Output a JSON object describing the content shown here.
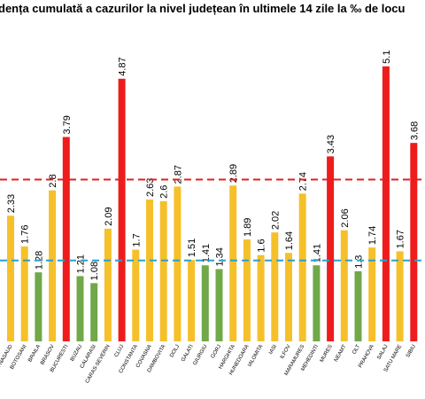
{
  "chart_data": {
    "type": "bar",
    "title": "dența cumulată a cazurilor la nivel județean în ultimele 14 zile la ‰ de locu",
    "categories": [
      "BISTRITA-NASAUD",
      "BOTOSANI",
      "BRAILA",
      "BRASOV",
      "BUCURESTI",
      "BUZAU",
      "CALARASI",
      "CARAS-SEVERIN",
      "CLUJ",
      "CONSTANTA",
      "COVASNA",
      "DAMBOVITA",
      "DOLJ",
      "GALATI",
      "GIURGIU",
      "GORJ",
      "HARGHITA",
      "HUNEDOARA",
      "IALOMITA",
      "IASI",
      "ILFOV",
      "MARAMURES",
      "MEHEDINTI",
      "MURES",
      "NEAMT",
      "OLT",
      "PRAHOVA",
      "SALAJ",
      "SATU MARE",
      "SIBIU"
    ],
    "values": [
      2.33,
      1.76,
      1.28,
      2.8,
      3.79,
      1.21,
      1.08,
      2.09,
      4.87,
      1.7,
      2.63,
      2.6,
      2.87,
      1.51,
      1.41,
      1.34,
      2.89,
      1.89,
      1.6,
      2.02,
      1.64,
      2.74,
      1.41,
      3.43,
      2.06,
      1.3,
      1.74,
      5.1,
      1.67,
      3.68
    ],
    "colors": [
      "#f5c02a",
      "#f5c02a",
      "#70a84a",
      "#f5c02a",
      "#ee1c1c",
      "#70a84a",
      "#70a84a",
      "#f5c02a",
      "#ee1c1c",
      "#f5c02a",
      "#f5c02a",
      "#f5c02a",
      "#f5c02a",
      "#f5c02a",
      "#70a84a",
      "#70a84a",
      "#f5c02a",
      "#f5c02a",
      "#f5c02a",
      "#f5c02a",
      "#f5c02a",
      "#f5c02a",
      "#70a84a",
      "#ee1c1c",
      "#f5c02a",
      "#70a84a",
      "#f5c02a",
      "#ee1c1c",
      "#f5c02a",
      "#ee1c1c"
    ],
    "reference_lines": [
      {
        "value": 3,
        "color": "#e02020"
      },
      {
        "value": 1.5,
        "color": "#2aa0d0"
      }
    ],
    "ylim": [
      0,
      6.33
    ]
  }
}
